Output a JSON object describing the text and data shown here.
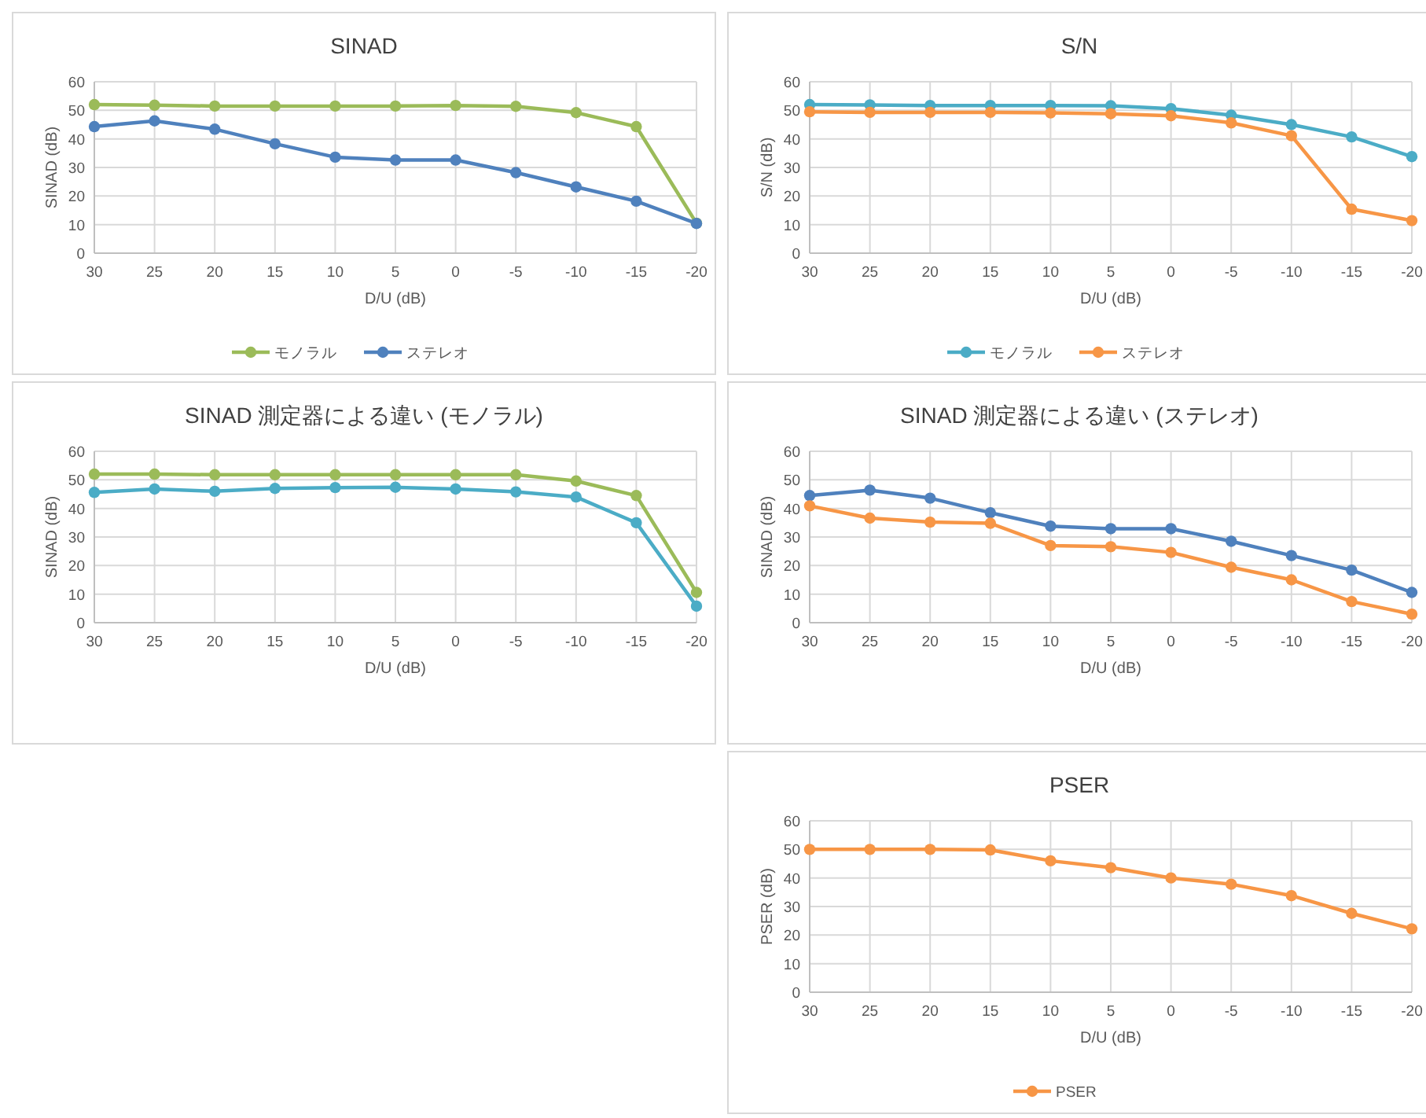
{
  "chart_data": [
    {
      "type": "line",
      "title": "SINAD",
      "xlabel": "D/U (dB)",
      "ylabel": "SINAD (dB)",
      "categories": [
        "30",
        "25",
        "20",
        "15",
        "10",
        "5",
        "0",
        "-5",
        "-10",
        "-15",
        "-20"
      ],
      "ylim": [
        0,
        60
      ],
      "yticks": [
        0,
        10,
        20,
        30,
        40,
        50,
        60
      ],
      "grid": true,
      "legend": "bottom",
      "marker": "circle",
      "line_style": "solid",
      "series": [
        {
          "name": "モノラル",
          "color": "#9bbb59",
          "values": [
            52,
            51.8,
            51.5,
            51.5,
            51.5,
            51.5,
            51.7,
            51.4,
            49.2,
            44.3,
            10.5
          ]
        },
        {
          "name": "ステレオ",
          "color": "#4f81bd",
          "values": [
            44.3,
            46.3,
            43.4,
            38.3,
            33.6,
            32.6,
            32.6,
            28.2,
            23.2,
            18.2,
            10.4
          ]
        }
      ]
    },
    {
      "type": "line",
      "title": "S/N",
      "xlabel": "D/U (dB)",
      "ylabel": "S/N (dB)",
      "categories": [
        "30",
        "25",
        "20",
        "15",
        "10",
        "5",
        "0",
        "-5",
        "-10",
        "-15",
        "-20"
      ],
      "ylim": [
        0,
        60
      ],
      "yticks": [
        0,
        10,
        20,
        30,
        40,
        50,
        60
      ],
      "grid": true,
      "legend": "bottom",
      "marker": "circle",
      "line_style": "solid",
      "series": [
        {
          "name": "モノラル",
          "color": "#4bacc6",
          "values": [
            52,
            51.9,
            51.7,
            51.7,
            51.7,
            51.6,
            50.6,
            48.3,
            45,
            40.7,
            33.8
          ]
        },
        {
          "name": "ステレオ",
          "color": "#f79646",
          "values": [
            49.5,
            49.3,
            49.3,
            49.3,
            49.1,
            48.8,
            48.1,
            45.6,
            41.1,
            15.4,
            11.4
          ]
        }
      ]
    },
    {
      "type": "line",
      "title": "SINAD 測定器による違い (モノラル)",
      "xlabel": "D/U (dB)",
      "ylabel": "SINAD (dB)",
      "categories": [
        "30",
        "25",
        "20",
        "15",
        "10",
        "5",
        "0",
        "-5",
        "-10",
        "-15",
        "-20"
      ],
      "ylim": [
        0,
        60
      ],
      "yticks": [
        0,
        10,
        20,
        30,
        40,
        50,
        60
      ],
      "grid": true,
      "marker": "circle",
      "line_style": "solid",
      "series": [
        {
          "color": "#9bbb59",
          "values": [
            52,
            52,
            51.8,
            51.8,
            51.8,
            51.8,
            51.8,
            51.8,
            49.6,
            44.5,
            10.6
          ]
        },
        {
          "color": "#4bacc6",
          "values": [
            45.6,
            46.8,
            46,
            47,
            47.3,
            47.4,
            46.8,
            45.8,
            44,
            35,
            5.8
          ]
        }
      ]
    },
    {
      "type": "line",
      "title": "SINAD 測定器による違い (ステレオ)",
      "xlabel": "D/U (dB)",
      "ylabel": "SINAD (dB)",
      "categories": [
        "30",
        "25",
        "20",
        "15",
        "10",
        "5",
        "0",
        "-5",
        "-10",
        "-15",
        "-20"
      ],
      "ylim": [
        0,
        60
      ],
      "yticks": [
        0,
        10,
        20,
        30,
        40,
        50,
        60
      ],
      "grid": true,
      "marker": "circle",
      "line_style": "solid",
      "series": [
        {
          "color": "#4f81bd",
          "values": [
            44.5,
            46.4,
            43.6,
            38.5,
            33.8,
            32.9,
            32.9,
            28.5,
            23.5,
            18.4,
            10.6
          ]
        },
        {
          "color": "#f79646",
          "values": [
            40.9,
            36.6,
            35.2,
            34.8,
            27,
            26.6,
            24.6,
            19.4,
            15,
            7.4,
            3
          ]
        }
      ]
    },
    {
      "type": "line",
      "title": "PSER",
      "xlabel": "D/U (dB)",
      "ylabel": "PSER (dB)",
      "categories": [
        "30",
        "25",
        "20",
        "15",
        "10",
        "5",
        "0",
        "-5",
        "-10",
        "-15",
        "-20"
      ],
      "ylim": [
        0,
        60
      ],
      "yticks": [
        0,
        10,
        20,
        30,
        40,
        50,
        60
      ],
      "grid": true,
      "legend": "bottom",
      "marker": "circle",
      "line_style": "solid",
      "series": [
        {
          "name": "PSER",
          "color": "#f79646",
          "values": [
            50,
            50,
            50,
            49.8,
            46,
            43.6,
            40,
            37.8,
            33.8,
            27.6,
            22.2
          ]
        }
      ]
    }
  ]
}
